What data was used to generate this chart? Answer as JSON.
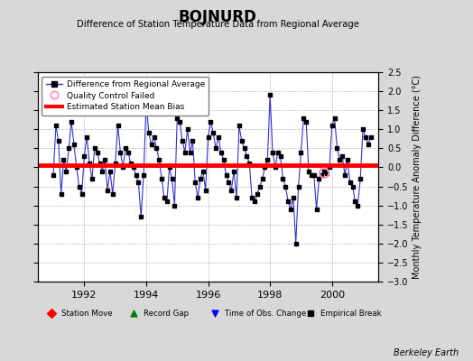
{
  "title": "BOJNURD",
  "subtitle": "Difference of Station Temperature Data from Regional Average",
  "ylabel": "Monthly Temperature Anomaly Difference (°C)",
  "credit": "Berkeley Earth",
  "ylim": [
    -3,
    2.5
  ],
  "yticks": [
    -3,
    -2.5,
    -2,
    -1.5,
    -1,
    -0.5,
    0,
    0.5,
    1,
    1.5,
    2,
    2.5
  ],
  "xlim": [
    1990.5,
    2001.5
  ],
  "xticks": [
    1992,
    1994,
    1996,
    1998,
    2000
  ],
  "mean_bias": 0.05,
  "bg_color": "#d8d8d8",
  "plot_bg": "#ffffff",
  "line_color": "#3333cc",
  "marker_color": "#000000",
  "bias_color": "#ff0000",
  "qc_color": "#ff88bb",
  "x_values": [
    1991.0,
    1991.083,
    1991.167,
    1991.25,
    1991.333,
    1991.417,
    1991.5,
    1991.583,
    1991.667,
    1991.75,
    1991.833,
    1991.917,
    1992.0,
    1992.083,
    1992.167,
    1992.25,
    1992.333,
    1992.417,
    1992.5,
    1992.583,
    1992.667,
    1992.75,
    1992.833,
    1992.917,
    1993.0,
    1993.083,
    1993.167,
    1993.25,
    1993.333,
    1993.417,
    1993.5,
    1993.583,
    1993.667,
    1993.75,
    1993.833,
    1993.917,
    1994.0,
    1994.083,
    1994.167,
    1994.25,
    1994.333,
    1994.417,
    1994.5,
    1994.583,
    1994.667,
    1994.75,
    1994.833,
    1994.917,
    1995.0,
    1995.083,
    1995.167,
    1995.25,
    1995.333,
    1995.417,
    1995.5,
    1995.583,
    1995.667,
    1995.75,
    1995.833,
    1995.917,
    1996.0,
    1996.083,
    1996.167,
    1996.25,
    1996.333,
    1996.417,
    1996.5,
    1996.583,
    1996.667,
    1996.75,
    1996.833,
    1996.917,
    1997.0,
    1997.083,
    1997.167,
    1997.25,
    1997.333,
    1997.417,
    1997.5,
    1997.583,
    1997.667,
    1997.75,
    1997.833,
    1997.917,
    1998.0,
    1998.083,
    1998.167,
    1998.25,
    1998.333,
    1998.417,
    1998.5,
    1998.583,
    1998.667,
    1998.75,
    1998.833,
    1998.917,
    1999.0,
    1999.083,
    1999.167,
    1999.25,
    1999.333,
    1999.417,
    1999.5,
    1999.583,
    1999.667,
    1999.75,
    1999.833,
    1999.917,
    2000.0,
    2000.083,
    2000.167,
    2000.25,
    2000.333,
    2000.417,
    2000.5,
    2000.583,
    2000.667,
    2000.75,
    2000.833,
    2000.917,
    2001.0,
    2001.083,
    2001.167,
    2001.25
  ],
  "y_values": [
    -0.2,
    1.1,
    0.7,
    -0.7,
    0.2,
    -0.1,
    0.5,
    1.2,
    0.6,
    0.0,
    -0.5,
    -0.7,
    0.3,
    0.8,
    0.1,
    -0.3,
    0.5,
    0.4,
    0.1,
    -0.1,
    0.2,
    -0.6,
    -0.1,
    -0.7,
    0.1,
    1.1,
    0.4,
    0.0,
    0.5,
    0.4,
    0.1,
    0.0,
    -0.2,
    -0.4,
    -1.3,
    -0.2,
    1.7,
    0.9,
    0.6,
    0.8,
    0.5,
    0.2,
    -0.3,
    -0.8,
    -0.9,
    0.0,
    -0.3,
    -1.0,
    1.3,
    1.2,
    0.7,
    0.4,
    1.0,
    0.4,
    0.7,
    -0.4,
    -0.8,
    -0.3,
    -0.1,
    -0.6,
    0.8,
    1.2,
    0.9,
    0.5,
    0.8,
    0.4,
    0.2,
    -0.2,
    -0.4,
    -0.6,
    -0.1,
    -0.8,
    1.1,
    0.7,
    0.5,
    0.3,
    0.1,
    -0.8,
    -0.9,
    -0.7,
    -0.5,
    -0.3,
    0.0,
    0.2,
    1.9,
    0.4,
    0.0,
    0.4,
    0.3,
    -0.3,
    -0.5,
    -0.9,
    -1.1,
    -0.8,
    -2.0,
    -0.5,
    0.4,
    1.3,
    1.2,
    -0.1,
    -0.2,
    -0.2,
    -1.1,
    -0.3,
    -0.2,
    -0.1,
    -0.15,
    0.0,
    1.1,
    1.3,
    0.5,
    0.2,
    0.3,
    -0.2,
    0.2,
    -0.4,
    -0.5,
    -0.9,
    -1.0,
    -0.3,
    1.0,
    0.8,
    0.6,
    0.8
  ],
  "qc_failed_x": [
    1999.75
  ],
  "qc_failed_y": [
    -0.15
  ]
}
